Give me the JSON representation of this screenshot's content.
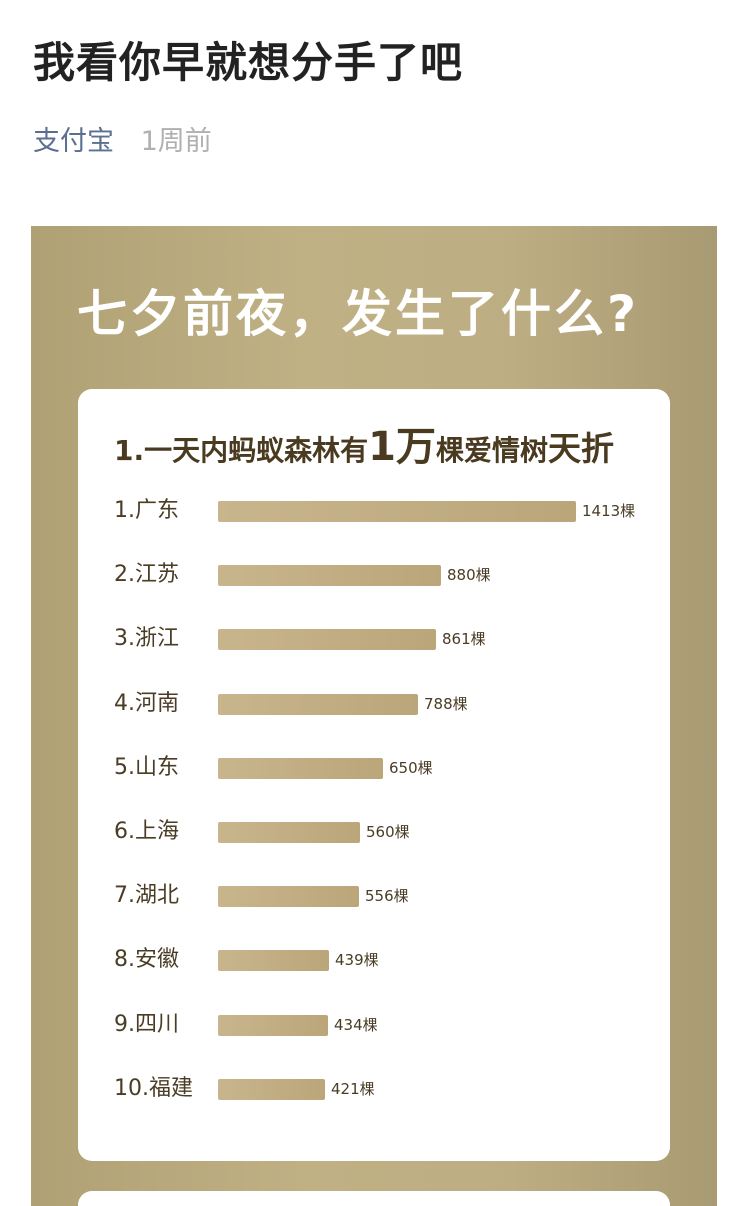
{
  "article": {
    "title": "我看你早就想分手了吧",
    "author": "支付宝",
    "time": "1周前"
  },
  "poster": {
    "heading": "七夕前夜，发生了什么?",
    "card_title_part1": "1.一天内蚂蚁森林有",
    "card_title_big": "1万",
    "card_title_part2": "棵爱情树",
    "card_title_end": "天折"
  },
  "chart_data": {
    "type": "bar",
    "orientation": "horizontal",
    "title": "1.一天内蚂蚁森林有1万棵爱情树天折",
    "categories": [
      "1.广东",
      "2.江苏",
      "3.浙江",
      "4.河南",
      "5.山东",
      "6.上海",
      "7.湖北",
      "8.安徽",
      "9.四川",
      "10.福建"
    ],
    "values": [
      1413,
      880,
      861,
      788,
      650,
      560,
      556,
      439,
      434,
      421
    ],
    "value_labels": [
      "1413棵",
      "880棵",
      "861棵",
      "788棵",
      "650棵",
      "560棵",
      "556棵",
      "439棵",
      "434棵",
      "421棵"
    ],
    "xlim": [
      0,
      1413
    ],
    "grid": false,
    "bar_color": "#c3ae84"
  }
}
